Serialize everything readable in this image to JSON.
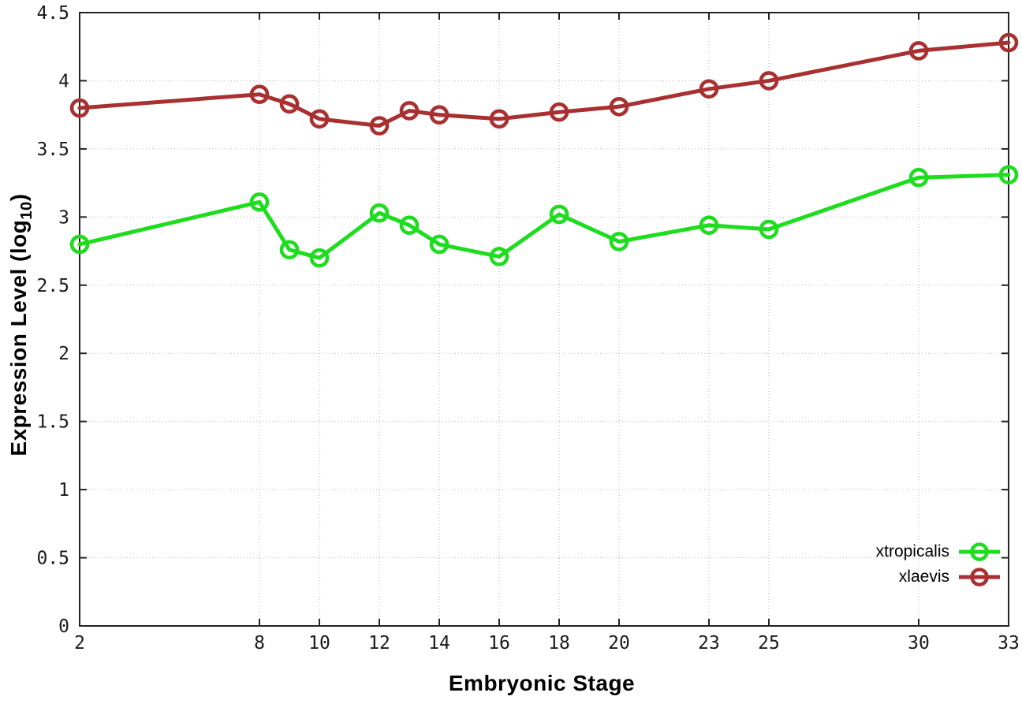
{
  "chart_data": {
    "type": "line",
    "title": "",
    "xlabel": "Embryonic Stage",
    "ylabel": {
      "main": "Expression Level (log",
      "sub": "10",
      "close": ")"
    },
    "xlim": [
      2,
      33
    ],
    "ylim": [
      0,
      4.5
    ],
    "grid": true,
    "legend_position": "bottom-right-inside",
    "x": [
      2,
      8,
      9,
      10,
      12,
      13,
      14,
      16,
      18,
      20,
      23,
      25,
      30,
      33
    ],
    "series": [
      {
        "name": "xtropicalis",
        "color": "#1edc1e",
        "values": [
          2.8,
          3.11,
          2.76,
          2.7,
          3.03,
          2.94,
          2.8,
          2.71,
          3.02,
          2.82,
          2.94,
          2.91,
          3.29,
          3.31
        ]
      },
      {
        "name": "xlaevis",
        "color": "#a93030",
        "values": [
          3.8,
          3.9,
          3.83,
          3.72,
          3.67,
          3.78,
          3.75,
          3.72,
          3.77,
          3.81,
          3.94,
          4.0,
          4.22,
          4.28
        ]
      }
    ],
    "xticks": [
      {
        "v": 2,
        "label": "2"
      },
      {
        "v": 8,
        "label": "8"
      },
      {
        "v": 10,
        "label": "10"
      },
      {
        "v": 12,
        "label": "12"
      },
      {
        "v": 14,
        "label": "14"
      },
      {
        "v": 16,
        "label": "16"
      },
      {
        "v": 18,
        "label": "18"
      },
      {
        "v": 20,
        "label": "20"
      },
      {
        "v": 23,
        "label": "23"
      },
      {
        "v": 25,
        "label": "25"
      },
      {
        "v": 30,
        "label": "30"
      },
      {
        "v": 33,
        "label": "33"
      }
    ],
    "yticks": [
      {
        "v": 0,
        "label": "0"
      },
      {
        "v": 0.5,
        "label": "0.5"
      },
      {
        "v": 1,
        "label": "1"
      },
      {
        "v": 1.5,
        "label": "1.5"
      },
      {
        "v": 2,
        "label": "2"
      },
      {
        "v": 2.5,
        "label": "2.5"
      },
      {
        "v": 3,
        "label": "3"
      },
      {
        "v": 3.5,
        "label": "3.5"
      },
      {
        "v": 4,
        "label": "4"
      },
      {
        "v": 4.5,
        "label": "4.5"
      }
    ],
    "colors": {
      "axis": "#222222",
      "grid": "#b3b3b3",
      "tick_text": "#1a1a1a",
      "background": "#ffffff"
    }
  }
}
